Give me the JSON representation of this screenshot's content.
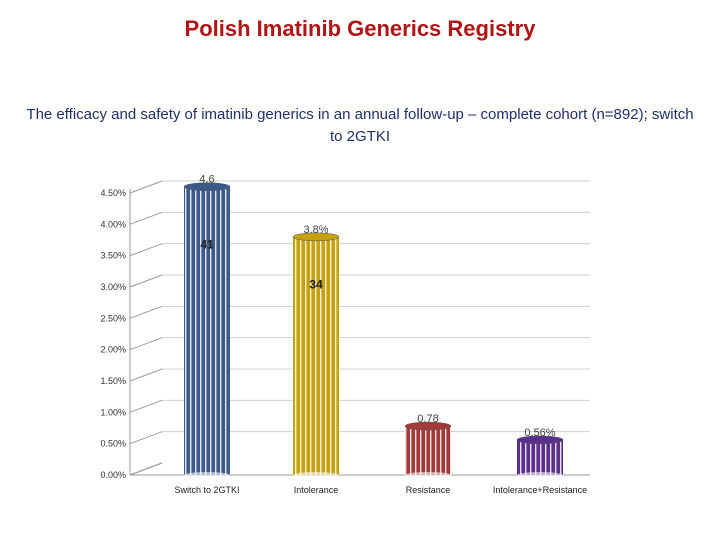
{
  "header": {
    "title": "Polish Imatinib Generics Registry",
    "subtitle": "The efficacy and safety of imatinib generics in an annual follow-up – complete cohort (n=892); switch to 2GTKI"
  },
  "chart_data": {
    "type": "bar",
    "title": "Polish Imatinib Generics Registry",
    "subtitle": "The efficacy and safety of imatinib generics in an annual follow-up – complete cohort (n=892); switch to 2GTKI",
    "xlabel": "",
    "ylabel": "",
    "ylim": [
      0,
      4.5
    ],
    "yticks": [
      "0.00%",
      "0.50%",
      "1.00%",
      "1.50%",
      "2.00%",
      "2.50%",
      "3.00%",
      "3.50%",
      "4.00%",
      "4.50%"
    ],
    "categories": [
      "Switch to 2GTKI",
      "Intolerance",
      "Resistance",
      "Intolerance+Resistance"
    ],
    "series": [
      {
        "values": [
          4.6,
          3.8,
          0.78,
          0.56
        ],
        "labels": [
          "4.6",
          "3.8%",
          "0.78",
          "0.56%"
        ],
        "counts": [
          "41",
          "34",
          "",
          ""
        ],
        "colors": [
          "#3d5a8a",
          "#c7a00e",
          "#a33a3a",
          "#5b2f8c"
        ]
      }
    ],
    "grid": true,
    "legend": "none"
  }
}
